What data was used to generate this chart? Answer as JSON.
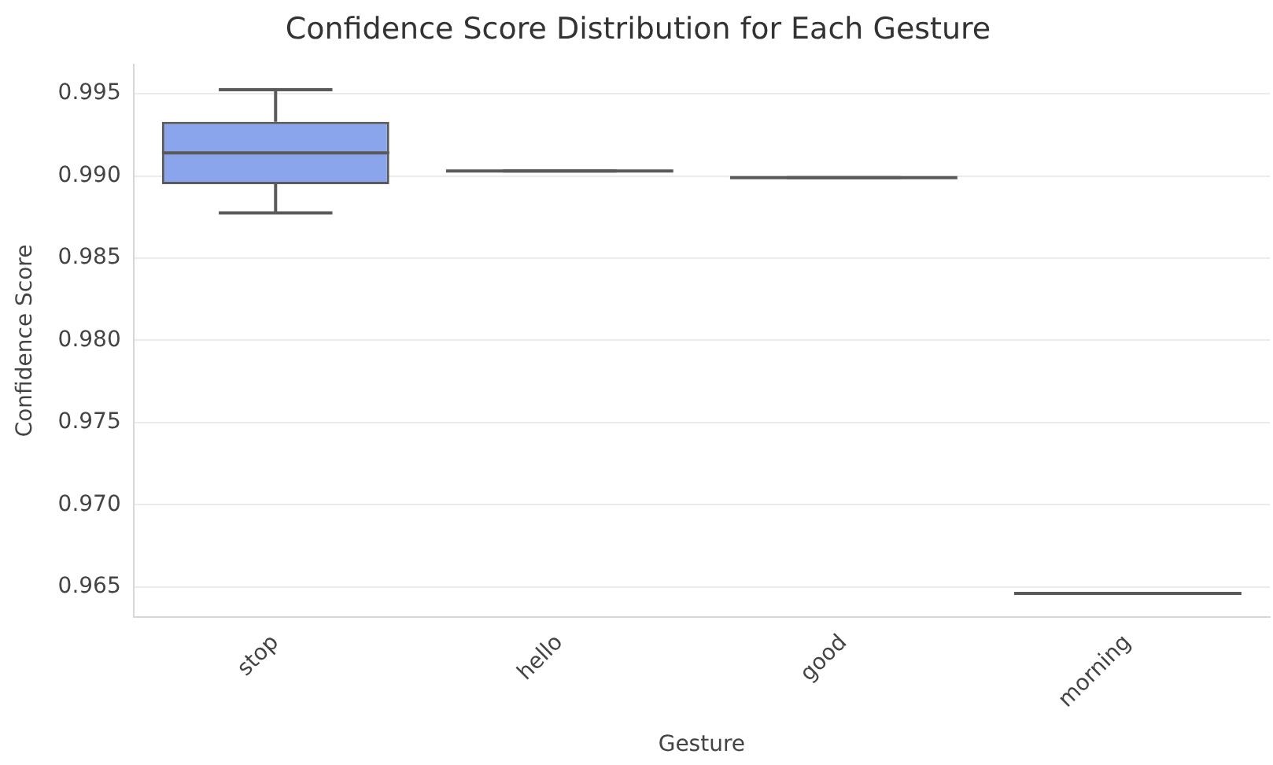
{
  "chart_data": {
    "type": "box",
    "title": "Confidence Score Distribution for Each Gesture",
    "xlabel": "Gesture",
    "ylabel": "Confidence Score",
    "categories": [
      "stop",
      "hello",
      "good",
      "morning"
    ],
    "colors": [
      "#8aa5ec",
      "#5a5a5a",
      "#5a5a5a",
      "#5a5a5a"
    ],
    "boxes": [
      {
        "low": 0.98775,
        "q1": 0.9895,
        "median": 0.9914,
        "q3": 0.9933,
        "high": 0.99525
      },
      {
        "low": 0.9903,
        "q1": 0.9903,
        "median": 0.9903,
        "q3": 0.9903,
        "high": 0.9903
      },
      {
        "low": 0.9899,
        "q1": 0.9899,
        "median": 0.9899,
        "q3": 0.9899,
        "high": 0.9899
      },
      {
        "low": 0.9646,
        "q1": 0.9646,
        "median": 0.9646,
        "q3": 0.9646,
        "high": 0.9646
      }
    ],
    "ylim": [
      0.96315,
      0.9968
    ],
    "yticks": [
      0.965,
      {
        "value": 0.97,
        "label": "0.970"
      },
      0.975,
      {
        "value": 0.98,
        "label": "0.980"
      },
      0.985,
      {
        "value": 0.99,
        "label": "0.990"
      },
      0.995
    ],
    "grid": "y"
  }
}
